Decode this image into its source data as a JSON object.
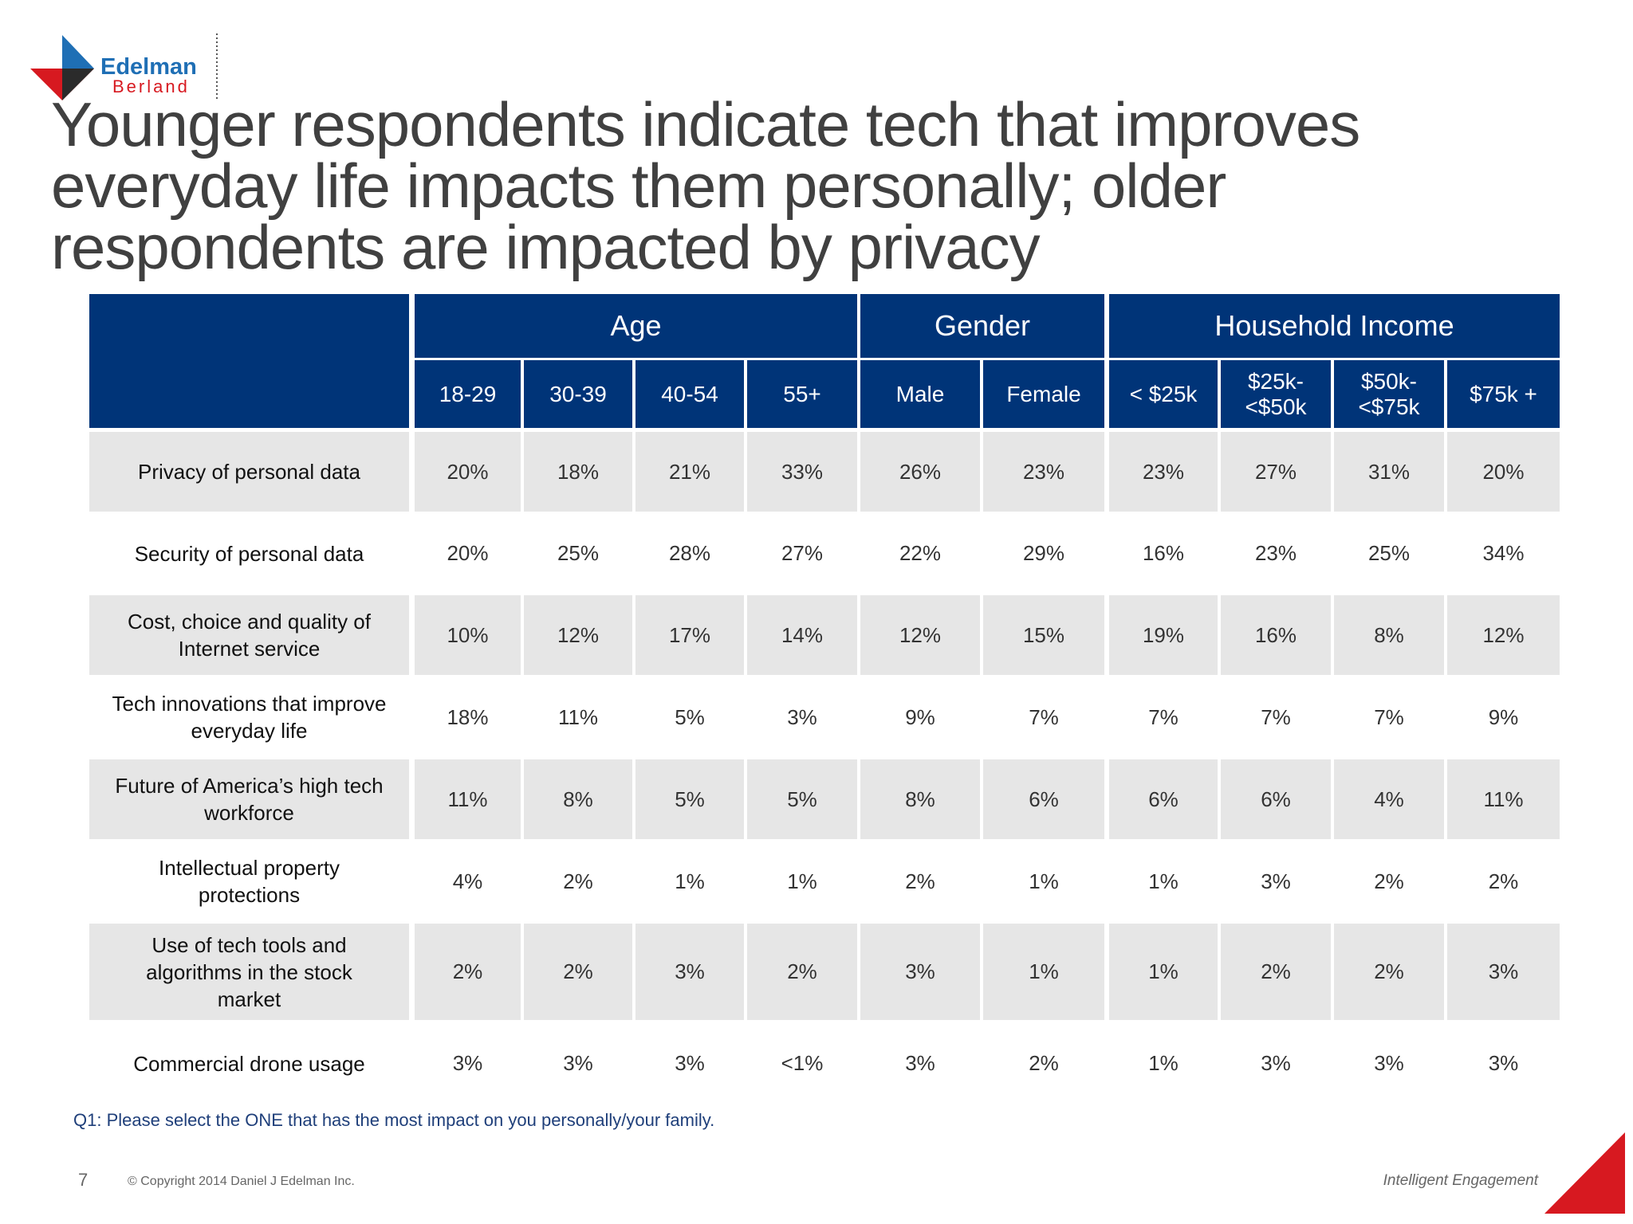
{
  "logo": {
    "name": "Edelman",
    "sub": "Berland"
  },
  "title": "Younger respondents indicate tech that improves everyday life impacts them personally; older respondents are impacted by privacy",
  "table": {
    "groups": [
      {
        "label": "Age",
        "span": 4
      },
      {
        "label": "Gender",
        "span": 2
      },
      {
        "label": "Household Income",
        "span": 4
      }
    ],
    "columns": [
      "18-29",
      "30-39",
      "40-54",
      "55+",
      "Male",
      "Female",
      "< $25k",
      "$25k-\n<$50k",
      "$50k-\n<$75k",
      "$75k +"
    ],
    "rows": [
      {
        "label": "Privacy of personal data",
        "cells": [
          "20%",
          "18%",
          "21%",
          "33%",
          "26%",
          "23%",
          "23%",
          "27%",
          "31%",
          "20%"
        ]
      },
      {
        "label": "Security of personal data",
        "cells": [
          "20%",
          "25%",
          "28%",
          "27%",
          "22%",
          "29%",
          "16%",
          "23%",
          "25%",
          "34%"
        ]
      },
      {
        "label": "Cost, choice and quality of\nInternet service",
        "cells": [
          "10%",
          "12%",
          "17%",
          "14%",
          "12%",
          "15%",
          "19%",
          "16%",
          "8%",
          "12%"
        ]
      },
      {
        "label": "Tech innovations that improve\neveryday life",
        "cells": [
          "18%",
          "11%",
          "5%",
          "3%",
          "9%",
          "7%",
          "7%",
          "7%",
          "7%",
          "9%"
        ]
      },
      {
        "label": "Future of America’s high tech\nworkforce",
        "cells": [
          "11%",
          "8%",
          "5%",
          "5%",
          "8%",
          "6%",
          "6%",
          "6%",
          "4%",
          "11%"
        ]
      },
      {
        "label": "Intellectual property\nprotections",
        "cells": [
          "4%",
          "2%",
          "1%",
          "1%",
          "2%",
          "1%",
          "1%",
          "3%",
          "2%",
          "2%"
        ]
      },
      {
        "label": "Use of tech tools and\nalgorithms in the stock\nmarket",
        "cells": [
          "2%",
          "2%",
          "3%",
          "2%",
          "3%",
          "1%",
          "1%",
          "2%",
          "2%",
          "3%"
        ]
      },
      {
        "label": "Commercial drone usage",
        "cells": [
          "3%",
          "3%",
          "3%",
          "<1%",
          "3%",
          "2%",
          "1%",
          "3%",
          "3%",
          "3%"
        ]
      }
    ]
  },
  "footnote": "Q1: Please select the ONE that has the most impact on you personally/your family.",
  "page_number": "7",
  "copyright": "© Copyright 2014 Daniel J Edelman Inc.",
  "tagline": "Intelligent Engagement"
}
